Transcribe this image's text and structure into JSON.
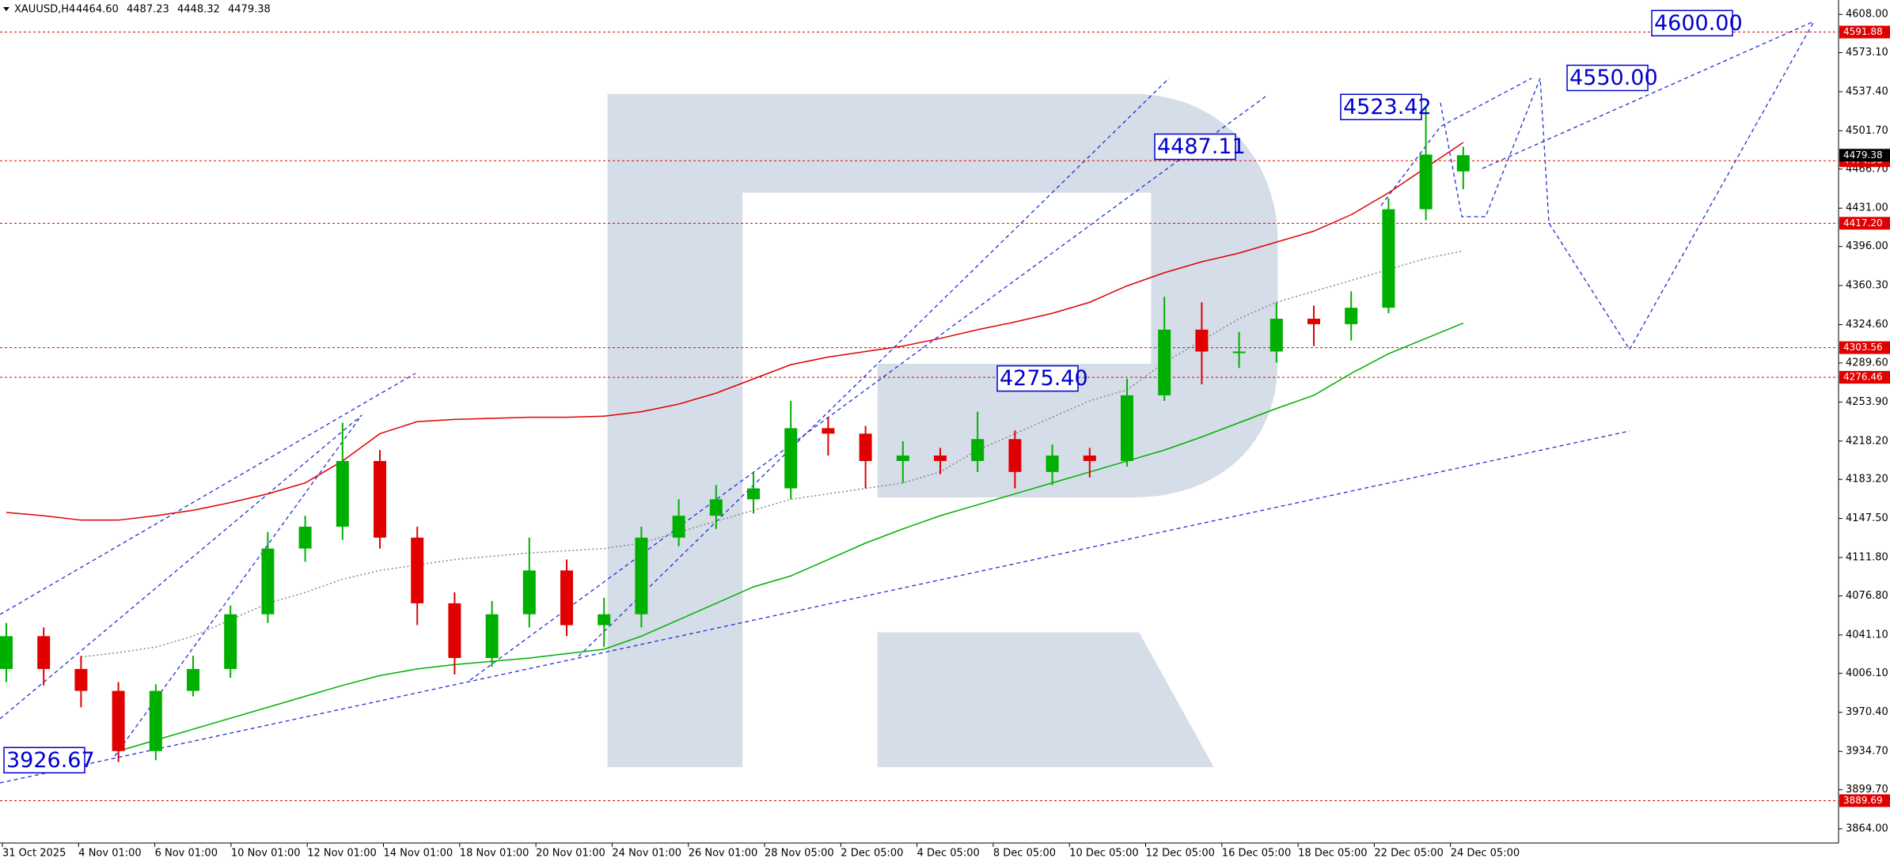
{
  "header": {
    "symbol": "XAUUSD,H4",
    "quote": [
      "4464.60",
      "4487.23",
      "4448.32",
      "4479.38"
    ]
  },
  "chart_data": {
    "type": "candlestick",
    "ylim": [
      3851,
      4619
    ],
    "yticks": [
      {
        "value": 4608,
        "label": "4608.00"
      },
      {
        "value": 4573.1,
        "label": "4573.10"
      },
      {
        "value": 4537.4,
        "label": "4537.40"
      },
      {
        "value": 4501.7,
        "label": "4501.70"
      },
      {
        "value": 4466.7,
        "label": "4466.70"
      },
      {
        "value": 4431,
        "label": "4431.00"
      },
      {
        "value": 4396,
        "label": "4396.00"
      },
      {
        "value": 4360.3,
        "label": "4360.30"
      },
      {
        "value": 4324.6,
        "label": "4324.60"
      },
      {
        "value": 4289.6,
        "label": "4289.60"
      },
      {
        "value": 4253.9,
        "label": "4253.90"
      },
      {
        "value": 4218.2,
        "label": "4218.20"
      },
      {
        "value": 4183.2,
        "label": "4183.20"
      },
      {
        "value": 4147.5,
        "label": "4147.50"
      },
      {
        "value": 4111.8,
        "label": "4111.80"
      },
      {
        "value": 4076.8,
        "label": "4076.80"
      },
      {
        "value": 4041.1,
        "label": "4041.10"
      },
      {
        "value": 4006.1,
        "label": "4006.10"
      },
      {
        "value": 3970.4,
        "label": "3970.40"
      },
      {
        "value": 3934.7,
        "label": "3934.70"
      },
      {
        "value": 3899.7,
        "label": "3899.70"
      },
      {
        "value": 3864,
        "label": "3864.00"
      }
    ],
    "x_labels": [
      "31 Oct 2025",
      "4 Nov 01:00",
      "6 Nov 01:00",
      "10 Nov 01:00",
      "12 Nov 01:00",
      "14 Nov 01:00",
      "18 Nov 01:00",
      "20 Nov 01:00",
      "24 Nov 01:00",
      "26 Nov 01:00",
      "28 Nov 05:00",
      "2 Dec 05:00",
      "4 Dec 05:00",
      "8 Dec 05:00",
      "10 Dec 05:00",
      "12 Dec 05:00",
      "16 Dec 05:00",
      "18 Dec 05:00",
      "22 Dec 05:00",
      "24 Dec 05:00"
    ],
    "candles": {
      "up_color": "#00b000",
      "down_color": "#e00000",
      "open": [
        4010,
        4040,
        4010,
        3990,
        3935,
        3990,
        4010,
        4060,
        4120,
        4140,
        4200,
        4130,
        4070,
        4020,
        4060,
        4100,
        4050,
        4060,
        4130,
        4150,
        4165,
        4175,
        4230,
        4225,
        4200,
        4205,
        4200,
        4220,
        4190,
        4205,
        4200,
        4260,
        4320,
        4300,
        4300,
        4330,
        4325,
        4340,
        4430,
        4464.6
      ],
      "high": [
        4052,
        4048,
        4022,
        3998,
        3996,
        4022,
        4068,
        4135,
        4150,
        4235,
        4210,
        4140,
        4080,
        4072,
        4130,
        4110,
        4075,
        4140,
        4165,
        4178,
        4190,
        4255,
        4240,
        4232,
        4218,
        4212,
        4245,
        4228,
        4215,
        4212,
        4275,
        4350,
        4345,
        4318,
        4345,
        4342,
        4355,
        4440,
        4523.42,
        4487.23
      ],
      "low": [
        3998,
        3995,
        3975,
        3925,
        3926.67,
        3985,
        4002,
        4052,
        4108,
        4128,
        4120,
        4050,
        4005,
        4012,
        4048,
        4040,
        4030,
        4048,
        4122,
        4138,
        4152,
        4165,
        4205,
        4175,
        4180,
        4188,
        4190,
        4175,
        4178,
        4185,
        4195,
        4255,
        4270,
        4285,
        4290,
        4305,
        4310,
        4335,
        4420,
        4448.32
      ],
      "close": [
        4040,
        4010,
        3990,
        3935,
        3990,
        4010,
        4060,
        4120,
        4140,
        4200,
        4130,
        4070,
        4020,
        4060,
        4100,
        4050,
        4060,
        4130,
        4150,
        4165,
        4175,
        4230,
        4225,
        4200,
        4205,
        4200,
        4220,
        4190,
        4205,
        4200,
        4260,
        4320,
        4300,
        4300,
        4330,
        4325,
        4340,
        4430,
        4480,
        4479.38
      ]
    },
    "ma": [
      {
        "color": "#e00000",
        "dash": false,
        "values": [
          4153,
          4150,
          4146,
          4146,
          4150,
          4155,
          4162,
          4170,
          4180,
          4200,
          4225,
          4236,
          4238,
          4239,
          4240,
          4240,
          4241,
          4245,
          4252,
          4262,
          4275,
          4288,
          4295,
          4300,
          4305,
          4312,
          4320,
          4327,
          4335,
          4345,
          4360,
          4372,
          4382,
          4390,
          4400,
          4410,
          4425,
          4445,
          4468,
          4491
        ]
      },
      {
        "color": "#888888",
        "dash": true,
        "values": [
          null,
          null,
          4021,
          4025,
          4030,
          4040,
          4055,
          4070,
          4080,
          4092,
          4100,
          4105,
          4110,
          4113,
          4116,
          4118,
          4120,
          4125,
          4135,
          4145,
          4155,
          4165,
          4170,
          4175,
          4180,
          4190,
          4210,
          4225,
          4240,
          4255,
          4265,
          4290,
          4310,
          4330,
          4345,
          4355,
          4365,
          4375,
          4385,
          4392
        ]
      },
      {
        "color": "#00b000",
        "dash": false,
        "values": [
          null,
          null,
          null,
          3935,
          3945,
          3955,
          3965,
          3975,
          3985,
          3995,
          4004,
          4010,
          4014,
          4017,
          4020,
          4024,
          4028,
          4040,
          4055,
          4070,
          4085,
          4095,
          4110,
          4125,
          4138,
          4150,
          4160,
          4170,
          4180,
          4190,
          4200,
          4210,
          4222,
          4235,
          4248,
          4260,
          4280,
          4298,
          4312,
          4326
        ]
      }
    ],
    "levels": [
      4591.88,
      4474.36,
      {
        "value": 4417.2,
        "label": "4417.20"
      },
      4303.56,
      4276.46,
      3889.69
    ],
    "level_color": "#e00000",
    "annotations": [
      {
        "value": 4600,
        "label": "4600.00"
      },
      {
        "value": 4550,
        "label": "4550.00"
      },
      4523.42,
      4487.11,
      {
        "value": 4275.4,
        "label": "4275.40"
      },
      3926.67
    ]
  }
}
